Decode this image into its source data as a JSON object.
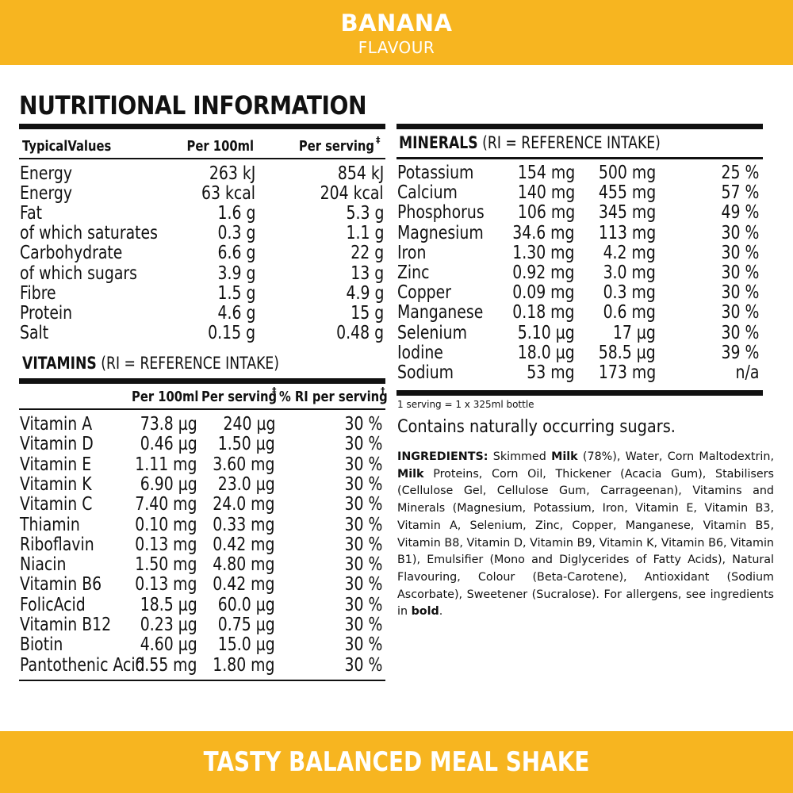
{
  "header": {
    "flavour_name": "BANANA",
    "flavour_label": "FLAVOUR"
  },
  "footer": {
    "tagline": "TASTY BALANCED MEAL SHAKE"
  },
  "title": "NUTRITIONAL INFORMATION",
  "nutrition": {
    "headers": [
      "TypicalValues",
      "Per 100ml",
      "Per serving"
    ],
    "serving_mark": "‡",
    "rows": [
      [
        "Energy",
        "263 kJ",
        "854 kJ"
      ],
      [
        "Energy",
        "63 kcal",
        "204 kcal"
      ],
      [
        "Fat",
        "1.6 g",
        "5.3 g"
      ],
      [
        "of which saturates",
        "0.3 g",
        "1.1 g"
      ],
      [
        "Carbohydrate",
        "6.6 g",
        "22 g"
      ],
      [
        "of which sugars",
        "3.9 g",
        "13 g"
      ],
      [
        "Fibre",
        "1.5 g",
        "4.9 g"
      ],
      [
        "Protein",
        "4.6 g",
        "15 g"
      ],
      [
        "Salt",
        "0.15 g",
        "0.48 g"
      ]
    ]
  },
  "vitamins": {
    "heading_bold": "VITAMINS",
    "heading_rest": " (RI = REFERENCE INTAKE)",
    "headers": [
      "Per 100ml",
      "Per serving",
      "% RI per serving"
    ],
    "serving_mark": "‡",
    "ri_mark": "†",
    "rows": [
      [
        "Vitamin A",
        "73.8 µg",
        "240 µg",
        "30 %"
      ],
      [
        "Vitamin D",
        "0.46 µg",
        "1.50 µg",
        "30 %"
      ],
      [
        "Vitamin E",
        "1.11 mg",
        "3.60 mg",
        "30 %"
      ],
      [
        "Vitamin K",
        "6.90 µg",
        "23.0 µg",
        "30 %"
      ],
      [
        "Vitamin C",
        "7.40 mg",
        "24.0 mg",
        "30 %"
      ],
      [
        "Thiamin",
        "0.10 mg",
        "0.33 mg",
        "30 %"
      ],
      [
        "Riboflavin",
        "0.13 mg",
        "0.42 mg",
        "30 %"
      ],
      [
        "Niacin",
        "1.50 mg",
        "4.80 mg",
        "30 %"
      ],
      [
        "Vitamin B6",
        "0.13 mg",
        "0.42 mg",
        "30 %"
      ],
      [
        "FolicAcid",
        "18.5 µg",
        "60.0 µg",
        "30 %"
      ],
      [
        "Vitamin B12",
        "0.23 µg",
        "0.75 µg",
        "30 %"
      ],
      [
        "Biotin",
        "4.60 µg",
        "15.0 µg",
        "30 %"
      ],
      [
        "Pantothenic Acid",
        "0.55 mg",
        "1.80 mg",
        "30 %"
      ]
    ]
  },
  "minerals": {
    "heading_bold": "MINERALS",
    "heading_rest": " (RI = REFERENCE INTAKE)",
    "rows": [
      [
        "Potassium",
        "154 mg",
        "500 mg",
        "25 %"
      ],
      [
        "Calcium",
        "140 mg",
        "455 mg",
        "57 %"
      ],
      [
        "Phosphorus",
        "106 mg",
        "345 mg",
        "49 %"
      ],
      [
        "Magnesium",
        "34.6 mg",
        "113 mg",
        "30 %"
      ],
      [
        "Iron",
        "1.30 mg",
        "4.2 mg",
        "30 %"
      ],
      [
        "Zinc",
        "0.92 mg",
        "3.0 mg",
        "30 %"
      ],
      [
        "Copper",
        "0.09 mg",
        "0.3 mg",
        "30 %"
      ],
      [
        "Manganese",
        "0.18 mg",
        "0.6 mg",
        "30 %"
      ],
      [
        "Selenium",
        "5.10 µg",
        "17 µg",
        "30 %"
      ],
      [
        "Iodine",
        "18.0 µg",
        "58.5 µg",
        "39 %"
      ],
      [
        "Sodium",
        "53 mg",
        "173 mg",
        "n/a"
      ]
    ]
  },
  "serving_note": "1 serving = 1 x 325ml bottle",
  "sugars_note": "Contains naturally occurring sugars.",
  "ingredients": {
    "label": "INGREDIENTS:",
    "parts": [
      {
        "text": " Skimmed ",
        "bold": false
      },
      {
        "text": "Milk",
        "bold": true
      },
      {
        "text": " (78%), Water, Corn Maltodextrin, ",
        "bold": false
      },
      {
        "text": "Milk",
        "bold": true
      },
      {
        "text": " Proteins, Corn Oil, Thickener (Acacia Gum), Stabilisers (Cellulose Gel, Cellulose Gum, Carrageenan), Vitamins and Minerals (Magnesium, Potassium, Iron, Vitamin E, Vitamin B3, Vitamin A, Selenium, Zinc, Copper, Manganese, Vitamin B5, Vitamin B8, Vitamin D, Vitamin B9, Vitamin K, Vitamin B6, Vitamin B1), Emulsifier (Mono and Diglycerides of Fatty Acids), Natural Flavouring, Colour (Beta-Carotene), Antioxidant (Sodium Ascorbate), Sweetener (Sucralose). For allergens, see ingredients in ",
        "bold": false
      },
      {
        "text": "bold",
        "bold": true
      },
      {
        "text": ".",
        "bold": false
      }
    ]
  }
}
